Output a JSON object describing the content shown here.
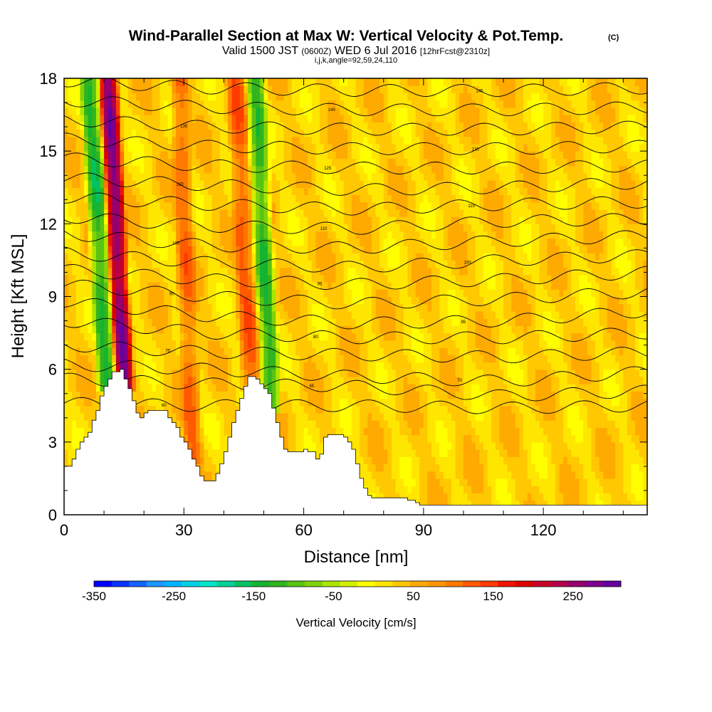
{
  "chart_data": {
    "type": "heatmap",
    "title": "Wind-Parallel Section at Max W: Vertical Velocity & Pot.Temp.",
    "title_mark": "(C)",
    "subtitle": {
      "valid_prefix": "Valid 1500 JST",
      "utc": "(0600Z)",
      "date": "WED 6 Jul 2016",
      "forecast": "[12hrFcst@2310z]"
    },
    "indices": "i,j,k,angle=92,59,24,110",
    "xlabel": "Distance [nm]",
    "ylabel": "Height [Kft MSL]",
    "xlim": [
      0,
      146
    ],
    "ylim": [
      0,
      18
    ],
    "xticks": [
      "0",
      "30",
      "60",
      "90",
      "120"
    ],
    "yticks": [
      "0",
      "3",
      "6",
      "9",
      "12",
      "15",
      "18"
    ],
    "colorbar": {
      "label": "Vertical Velocity [cm/s]",
      "min": -350,
      "max": 310,
      "step": 20,
      "tick_labels": [
        "-350",
        "-250",
        "-150",
        "-50",
        "50",
        "150",
        "250"
      ],
      "colors": [
        "#0000ff",
        "#0a32ff",
        "#1464ff",
        "#1e96ff",
        "#00b4ff",
        "#00d2e6",
        "#00e6c8",
        "#00d296",
        "#00c364",
        "#14b432",
        "#32b41e",
        "#5ac314",
        "#82d20a",
        "#aae600",
        "#d2f000",
        "#ffff00",
        "#ffe600",
        "#ffc800",
        "#ffaa00",
        "#ff9600",
        "#ff7800",
        "#ff5a00",
        "#ff3c00",
        "#f01400",
        "#dc0000",
        "#c80028",
        "#b4004b",
        "#96006e",
        "#7d008c",
        "#6400a0"
      ]
    },
    "terrain_profile": {
      "x": [
        0,
        1,
        2,
        3,
        4,
        5,
        6,
        7,
        8,
        9,
        10,
        11,
        12,
        13,
        14,
        15,
        16,
        17,
        18,
        19,
        20,
        21,
        22,
        23,
        24,
        25,
        26,
        27,
        28,
        29,
        30,
        31,
        32,
        33,
        34,
        35,
        36,
        37,
        38,
        39,
        40,
        41,
        42,
        43,
        44,
        45,
        46,
        47,
        48,
        49,
        50,
        51,
        52,
        53,
        54,
        55,
        56,
        57,
        58,
        59,
        60,
        61,
        62,
        63,
        64,
        65,
        66,
        67,
        68,
        69,
        70,
        71,
        72,
        73,
        74,
        75,
        76,
        77,
        78,
        79,
        80,
        81,
        82,
        83,
        84,
        85,
        86,
        87,
        88,
        89,
        90,
        91,
        92,
        93,
        94,
        95,
        96,
        97,
        98,
        99,
        100,
        101,
        102,
        103,
        104,
        105,
        106,
        107,
        108,
        109,
        110,
        111,
        112,
        113,
        114,
        115,
        116,
        117,
        118,
        119,
        120,
        121,
        122,
        123,
        124,
        125,
        126,
        127,
        128,
        129,
        130,
        131,
        132,
        133,
        134,
        135,
        136,
        137,
        138,
        139,
        140,
        141,
        142,
        143,
        144,
        145,
        146
      ],
      "height_kft": [
        2.0,
        2.0,
        2.3,
        2.7,
        3.0,
        3.2,
        3.4,
        3.9,
        4.3,
        4.9,
        5.3,
        5.6,
        5.9,
        5.9,
        6.0,
        5.6,
        5.2,
        4.7,
        4.2,
        4.0,
        4.2,
        4.3,
        4.3,
        4.3,
        4.3,
        4.3,
        4.0,
        3.8,
        3.6,
        3.2,
        3.0,
        2.7,
        2.3,
        2.0,
        1.6,
        1.4,
        1.4,
        1.4,
        1.7,
        2.1,
        2.6,
        3.2,
        3.8,
        4.3,
        4.8,
        5.3,
        5.7,
        5.7,
        5.6,
        5.4,
        5.2,
        5.0,
        4.4,
        3.8,
        3.2,
        2.7,
        2.6,
        2.6,
        2.6,
        2.6,
        2.7,
        2.6,
        2.6,
        2.3,
        2.5,
        3.2,
        3.3,
        3.3,
        3.3,
        3.3,
        3.2,
        3.0,
        2.7,
        2.1,
        1.5,
        1.1,
        0.8,
        0.7,
        0.7,
        0.7,
        0.7,
        0.7,
        0.7,
        0.7,
        0.7,
        0.7,
        0.6,
        0.6,
        0.5,
        0.4,
        0.4,
        0.4,
        0.4,
        0.4,
        0.4,
        0.4,
        0.4,
        0.4,
        0.4,
        0.4,
        0.4,
        0.4,
        0.4,
        0.4,
        0.4,
        0.4,
        0.4,
        0.4,
        0.4,
        0.4,
        0.4,
        0.4,
        0.4,
        0.4,
        0.4,
        0.4,
        0.4,
        0.4,
        0.4,
        0.4,
        0.4,
        0.4,
        0.4,
        0.4,
        0.4,
        0.4,
        0.4,
        0.4,
        0.4,
        0.4,
        0.4,
        0.4,
        0.4,
        0.4,
        0.4,
        0.4,
        0.4,
        0.4,
        0.4,
        0.4,
        0.4,
        0.4,
        0.4,
        0.4,
        0.4,
        0.4,
        0.4
      ]
    },
    "velocity_features": [
      {
        "name": "strong-updraft",
        "x_start": 13.5,
        "x_end": 16.5,
        "lean_per_kft": -0.32,
        "base": 5.5,
        "top": 18,
        "value": 240
      },
      {
        "name": "downdraft-west",
        "x_start": 9.0,
        "x_end": 12.0,
        "lean_per_kft": -0.35,
        "base": 5.5,
        "top": 18,
        "value": -160
      },
      {
        "name": "downdraft-mid",
        "x_start": 50.0,
        "x_end": 53.0,
        "lean_per_kft": -0.3,
        "base": 4.5,
        "top": 18,
        "value": -150
      },
      {
        "name": "updraft-mid",
        "x_start": 45.0,
        "x_end": 48.0,
        "lean_per_kft": -0.3,
        "base": 5.5,
        "top": 18,
        "value": 90
      },
      {
        "name": "updraft-east",
        "x_start": 30.0,
        "x_end": 33.0,
        "lean_per_kft": -0.22,
        "base": 2.5,
        "top": 18,
        "value": 80
      }
    ],
    "theta_contours": [
      {
        "label": "60",
        "heights": [
          4.6,
          4.5,
          4.5,
          4.4,
          4.5
        ]
      },
      {
        "label": "65",
        "heights": [
          5.6,
          5.4,
          5.3,
          4.9,
          5.1
        ]
      },
      {
        "label": "70",
        "heights": [
          6.2,
          6.0,
          5.7,
          5.5,
          5.9
        ]
      },
      {
        "label": "75",
        "heights": [
          7.0,
          6.7,
          6.6,
          6.5,
          6.7
        ]
      },
      {
        "label": "80",
        "heights": [
          8.0,
          7.5,
          7.3,
          7.3,
          7.5
        ]
      },
      {
        "label": "85",
        "heights": [
          8.8,
          8.2,
          7.9,
          8.0,
          8.4
        ]
      },
      {
        "label": "90",
        "heights": [
          9.5,
          9.0,
          8.7,
          8.9,
          9.2
        ]
      },
      {
        "label": "95",
        "heights": [
          10.1,
          9.7,
          9.5,
          9.7,
          10.0
        ]
      },
      {
        "label": "100",
        "heights": [
          10.8,
          10.4,
          10.2,
          10.5,
          10.7
        ]
      },
      {
        "label": "105",
        "heights": [
          11.6,
          11.1,
          11.0,
          11.3,
          11.5
        ]
      },
      {
        "label": "110",
        "heights": [
          12.3,
          11.9,
          11.8,
          12.1,
          12.2
        ]
      },
      {
        "label": "115",
        "heights": [
          13.1,
          12.8,
          12.6,
          12.8,
          12.9
        ]
      },
      {
        "label": "120",
        "heights": [
          13.9,
          13.6,
          13.4,
          13.5,
          13.7
        ]
      },
      {
        "label": "125",
        "heights": [
          14.7,
          14.4,
          14.3,
          14.3,
          14.4
        ]
      },
      {
        "label": "130",
        "heights": [
          15.5,
          15.2,
          15.1,
          15.1,
          15.2
        ]
      },
      {
        "label": "135",
        "heights": [
          16.3,
          16.0,
          15.9,
          15.9,
          16.0
        ]
      },
      {
        "label": "140",
        "heights": [
          17.1,
          16.8,
          16.7,
          16.7,
          16.8
        ]
      },
      {
        "label": "145",
        "heights": [
          17.9,
          17.6,
          17.5,
          17.5,
          17.6
        ]
      }
    ],
    "theta_contour_x": [
      0,
      36,
      73,
      110,
      146
    ]
  }
}
